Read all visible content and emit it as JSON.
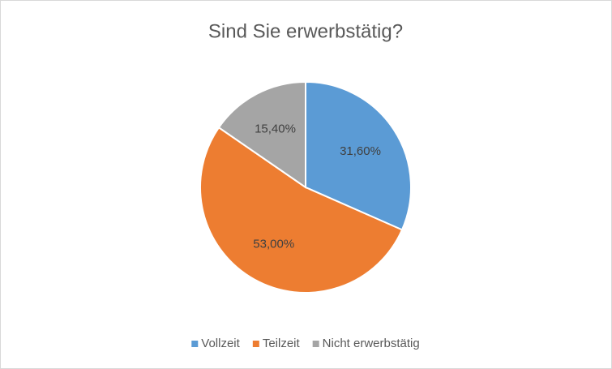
{
  "chart_data": {
    "type": "pie",
    "title": "Sind Sie erwerbstätig?",
    "categories": [
      "Vollzeit",
      "Teilzeit",
      "Nicht erwerbstätig"
    ],
    "values": [
      31.6,
      53.0,
      15.4
    ],
    "value_labels": [
      "31,60%",
      "53,00%",
      "15,40%"
    ],
    "colors": [
      "#5b9bd5",
      "#ed7d31",
      "#a5a5a5"
    ],
    "legend": "bottom"
  }
}
